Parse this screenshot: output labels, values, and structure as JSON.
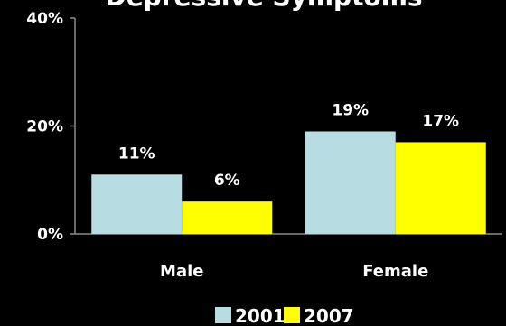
{
  "chart_data": {
    "type": "bar",
    "title": "Depressive Symptoms",
    "categories": [
      "Male",
      "Female"
    ],
    "series": [
      {
        "name": "2001",
        "values": [
          11,
          19
        ],
        "labels": [
          "11%",
          "19%"
        ]
      },
      {
        "name": "2007",
        "values": [
          6,
          17
        ],
        "labels": [
          "6%",
          "17%"
        ]
      }
    ],
    "ylim": [
      0,
      40
    ],
    "yticks": [
      {
        "value": 0,
        "label": "0%"
      },
      {
        "value": 20,
        "label": "20%"
      },
      {
        "value": 40,
        "label": "40%"
      }
    ],
    "xlabel": "",
    "ylabel": "",
    "legend": "bottom",
    "grid": false
  },
  "colors": {
    "background": "#000000",
    "series_2001": "#b7dde3",
    "series_2007": "#ffff00",
    "axis": "#8c8c8c",
    "text": "#ffffff"
  }
}
